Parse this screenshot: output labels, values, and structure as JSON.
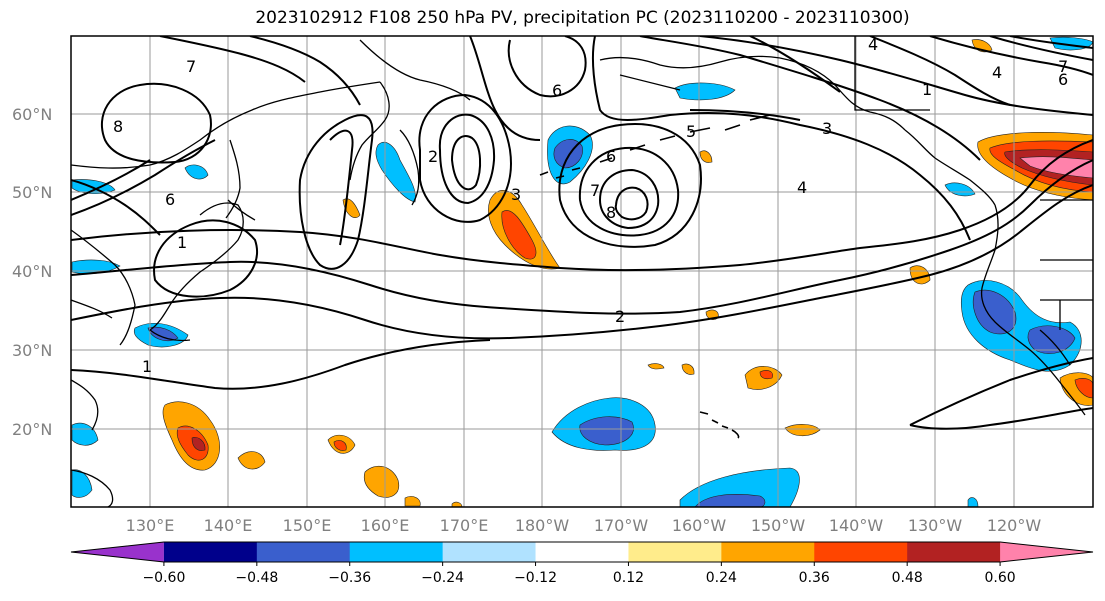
{
  "title": "2023102912 F108 250 hPa PV, precipitation PC (2023110200 - 2023110300)",
  "lat_labels": [
    "60°N",
    "50°N",
    "40°N",
    "30°N",
    "20°N"
  ],
  "lon_labels": [
    "130°E",
    "140°E",
    "150°E",
    "160°E",
    "170°E",
    "180°W",
    "170°W",
    "160°W",
    "150°W",
    "140°W",
    "130°W",
    "120°W"
  ],
  "contour_labels": [
    "7",
    "8",
    "6",
    "1",
    "6",
    "5",
    "3",
    "4",
    "6",
    "7",
    "8",
    "4",
    "2",
    "1",
    "2",
    "1",
    "3",
    "7",
    "6",
    "4"
  ],
  "colorbar": {
    "colors": [
      "#9932CC",
      "#00008B",
      "#3A5FCD",
      "#00BFFF",
      "#B0E2FF",
      "#FFFFFF",
      "#FFEC8B",
      "#FFA500",
      "#FF4500",
      "#B22222",
      "#FF82AB"
    ],
    "tick_labels": [
      "−0.60",
      "−0.48",
      "−0.36",
      "−0.24",
      "−0.12",
      "0.12",
      "0.24",
      "0.36",
      "0.48",
      "0.60"
    ]
  }
}
